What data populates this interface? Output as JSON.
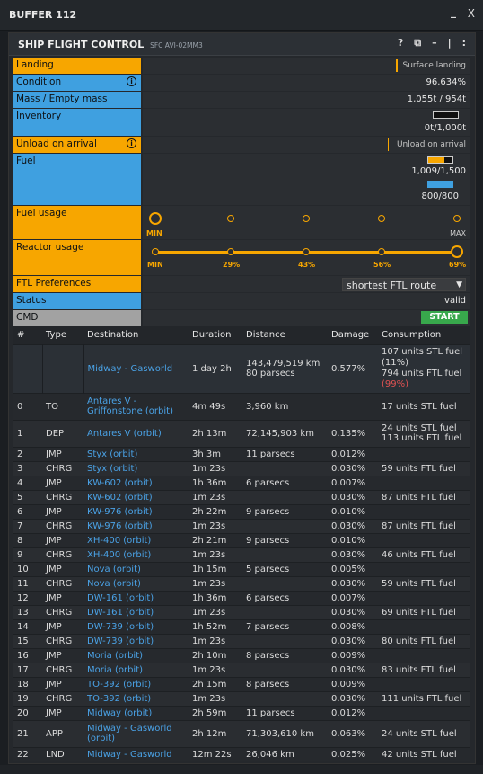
{
  "window": {
    "title": "BUFFER 112",
    "close": "X",
    "minimize": "_"
  },
  "panel": {
    "title": "SHIP FLIGHT CONTROL",
    "subtitle": "SFC AVI-02MM3",
    "help": "?",
    "copy": "⧉",
    "min": "–",
    "sep": "|",
    "more": ":"
  },
  "form": {
    "landing": {
      "label": "Landing",
      "value": "Surface landing"
    },
    "condition": {
      "label": "Condition",
      "value": "96.634%"
    },
    "mass": {
      "label": "Mass / Empty mass",
      "value": "1,055t / 954t"
    },
    "inventory": {
      "label": "Inventory",
      "value": "0t/1,000t",
      "fill_fraction": 0.0
    },
    "unload": {
      "label": "Unload on arrival",
      "value": "Unload on arrival"
    },
    "fuel": {
      "label": "Fuel",
      "stl_value": "1,009/1,500",
      "ftl_value": "800/800",
      "stl_fraction": 0.67,
      "ftl_fraction": 1.0
    },
    "fuel_usage": {
      "label": "Fuel usage",
      "min": "MIN",
      "max": "MAX",
      "level_index": 0
    },
    "reactor_usage": {
      "label": "Reactor usage",
      "ticks": [
        "MIN",
        "29%",
        "43%",
        "56%",
        "69%"
      ],
      "level_index": 4
    },
    "ftl_pref": {
      "label": "FTL Preferences",
      "selected": "shortest FTL route"
    },
    "status": {
      "label": "Status",
      "value": "valid"
    },
    "cmd": {
      "label": "CMD",
      "button": "START"
    }
  },
  "colors": {
    "orange": "#f7a600",
    "blue": "#3fa0e0",
    "green": "#38a84c",
    "link": "#4aa2e6",
    "red": "#e05252"
  },
  "table": {
    "headers": [
      "#",
      "Type",
      "Destination",
      "Duration",
      "Distance",
      "Damage",
      "Consumption"
    ],
    "summary": {
      "destination": "Midway - Gasworld",
      "duration": "1 day 2h",
      "distance1": "143,479,519 km",
      "distance2": "80 parsecs",
      "damage": "0.577%",
      "cons1": "107 units STL fuel",
      "cons2": "(11%)",
      "cons3": "794 units FTL fuel",
      "cons4": "(99%)"
    },
    "rows": [
      {
        "n": "0",
        "type": "TO",
        "dest": "Antares V - Griffonstone (orbit)",
        "dur": "4m 49s",
        "dist": "3,960 km",
        "dmg": "",
        "cons": "17 units STL fuel"
      },
      {
        "n": "1",
        "type": "DEP",
        "dest": "Antares V (orbit)",
        "dur": "2h 13m",
        "dist": "72,145,903 km",
        "dmg": "0.135%",
        "cons": "24 units STL fuel",
        "cons2": "113 units FTL fuel"
      },
      {
        "n": "2",
        "type": "JMP",
        "dest": "Styx (orbit)",
        "dur": "3h 3m",
        "dist": "11 parsecs",
        "dmg": "0.012%",
        "cons": ""
      },
      {
        "n": "3",
        "type": "CHRG",
        "dest": "Styx (orbit)",
        "dur": "1m 23s",
        "dist": "",
        "dmg": "0.030%",
        "cons": "59 units FTL fuel"
      },
      {
        "n": "4",
        "type": "JMP",
        "dest": "KW-602 (orbit)",
        "dur": "1h 36m",
        "dist": "6 parsecs",
        "dmg": "0.007%",
        "cons": ""
      },
      {
        "n": "5",
        "type": "CHRG",
        "dest": "KW-602 (orbit)",
        "dur": "1m 23s",
        "dist": "",
        "dmg": "0.030%",
        "cons": "87 units FTL fuel"
      },
      {
        "n": "6",
        "type": "JMP",
        "dest": "KW-976 (orbit)",
        "dur": "2h 22m",
        "dist": "9 parsecs",
        "dmg": "0.010%",
        "cons": ""
      },
      {
        "n": "7",
        "type": "CHRG",
        "dest": "KW-976 (orbit)",
        "dur": "1m 23s",
        "dist": "",
        "dmg": "0.030%",
        "cons": "87 units FTL fuel"
      },
      {
        "n": "8",
        "type": "JMP",
        "dest": "XH-400 (orbit)",
        "dur": "2h 21m",
        "dist": "9 parsecs",
        "dmg": "0.010%",
        "cons": ""
      },
      {
        "n": "9",
        "type": "CHRG",
        "dest": "XH-400 (orbit)",
        "dur": "1m 23s",
        "dist": "",
        "dmg": "0.030%",
        "cons": "46 units FTL fuel"
      },
      {
        "n": "10",
        "type": "JMP",
        "dest": "Nova (orbit)",
        "dur": "1h 15m",
        "dist": "5 parsecs",
        "dmg": "0.005%",
        "cons": ""
      },
      {
        "n": "11",
        "type": "CHRG",
        "dest": "Nova (orbit)",
        "dur": "1m 23s",
        "dist": "",
        "dmg": "0.030%",
        "cons": "59 units FTL fuel"
      },
      {
        "n": "12",
        "type": "JMP",
        "dest": "DW-161 (orbit)",
        "dur": "1h 36m",
        "dist": "6 parsecs",
        "dmg": "0.007%",
        "cons": ""
      },
      {
        "n": "13",
        "type": "CHRG",
        "dest": "DW-161 (orbit)",
        "dur": "1m 23s",
        "dist": "",
        "dmg": "0.030%",
        "cons": "69 units FTL fuel"
      },
      {
        "n": "14",
        "type": "JMP",
        "dest": "DW-739 (orbit)",
        "dur": "1h 52m",
        "dist": "7 parsecs",
        "dmg": "0.008%",
        "cons": ""
      },
      {
        "n": "15",
        "type": "CHRG",
        "dest": "DW-739 (orbit)",
        "dur": "1m 23s",
        "dist": "",
        "dmg": "0.030%",
        "cons": "80 units FTL fuel"
      },
      {
        "n": "16",
        "type": "JMP",
        "dest": "Moria (orbit)",
        "dur": "2h 10m",
        "dist": "8 parsecs",
        "dmg": "0.009%",
        "cons": ""
      },
      {
        "n": "17",
        "type": "CHRG",
        "dest": "Moria (orbit)",
        "dur": "1m 23s",
        "dist": "",
        "dmg": "0.030%",
        "cons": "83 units FTL fuel"
      },
      {
        "n": "18",
        "type": "JMP",
        "dest": "TO-392 (orbit)",
        "dur": "2h 15m",
        "dist": "8 parsecs",
        "dmg": "0.009%",
        "cons": ""
      },
      {
        "n": "19",
        "type": "CHRG",
        "dest": "TO-392 (orbit)",
        "dur": "1m 23s",
        "dist": "",
        "dmg": "0.030%",
        "cons": "111 units FTL fuel"
      },
      {
        "n": "20",
        "type": "JMP",
        "dest": "Midway (orbit)",
        "dur": "2h 59m",
        "dist": "11 parsecs",
        "dmg": "0.012%",
        "cons": ""
      },
      {
        "n": "21",
        "type": "APP",
        "dest": "Midway - Gasworld (orbit)",
        "dur": "2h 12m",
        "dist": "71,303,610 km",
        "dmg": "0.063%",
        "cons": "24 units STL fuel"
      },
      {
        "n": "22",
        "type": "LND",
        "dest": "Midway - Gasworld",
        "dur": "12m 22s",
        "dist": "26,046 km",
        "dmg": "0.025%",
        "cons": "42 units STL fuel"
      }
    ]
  }
}
